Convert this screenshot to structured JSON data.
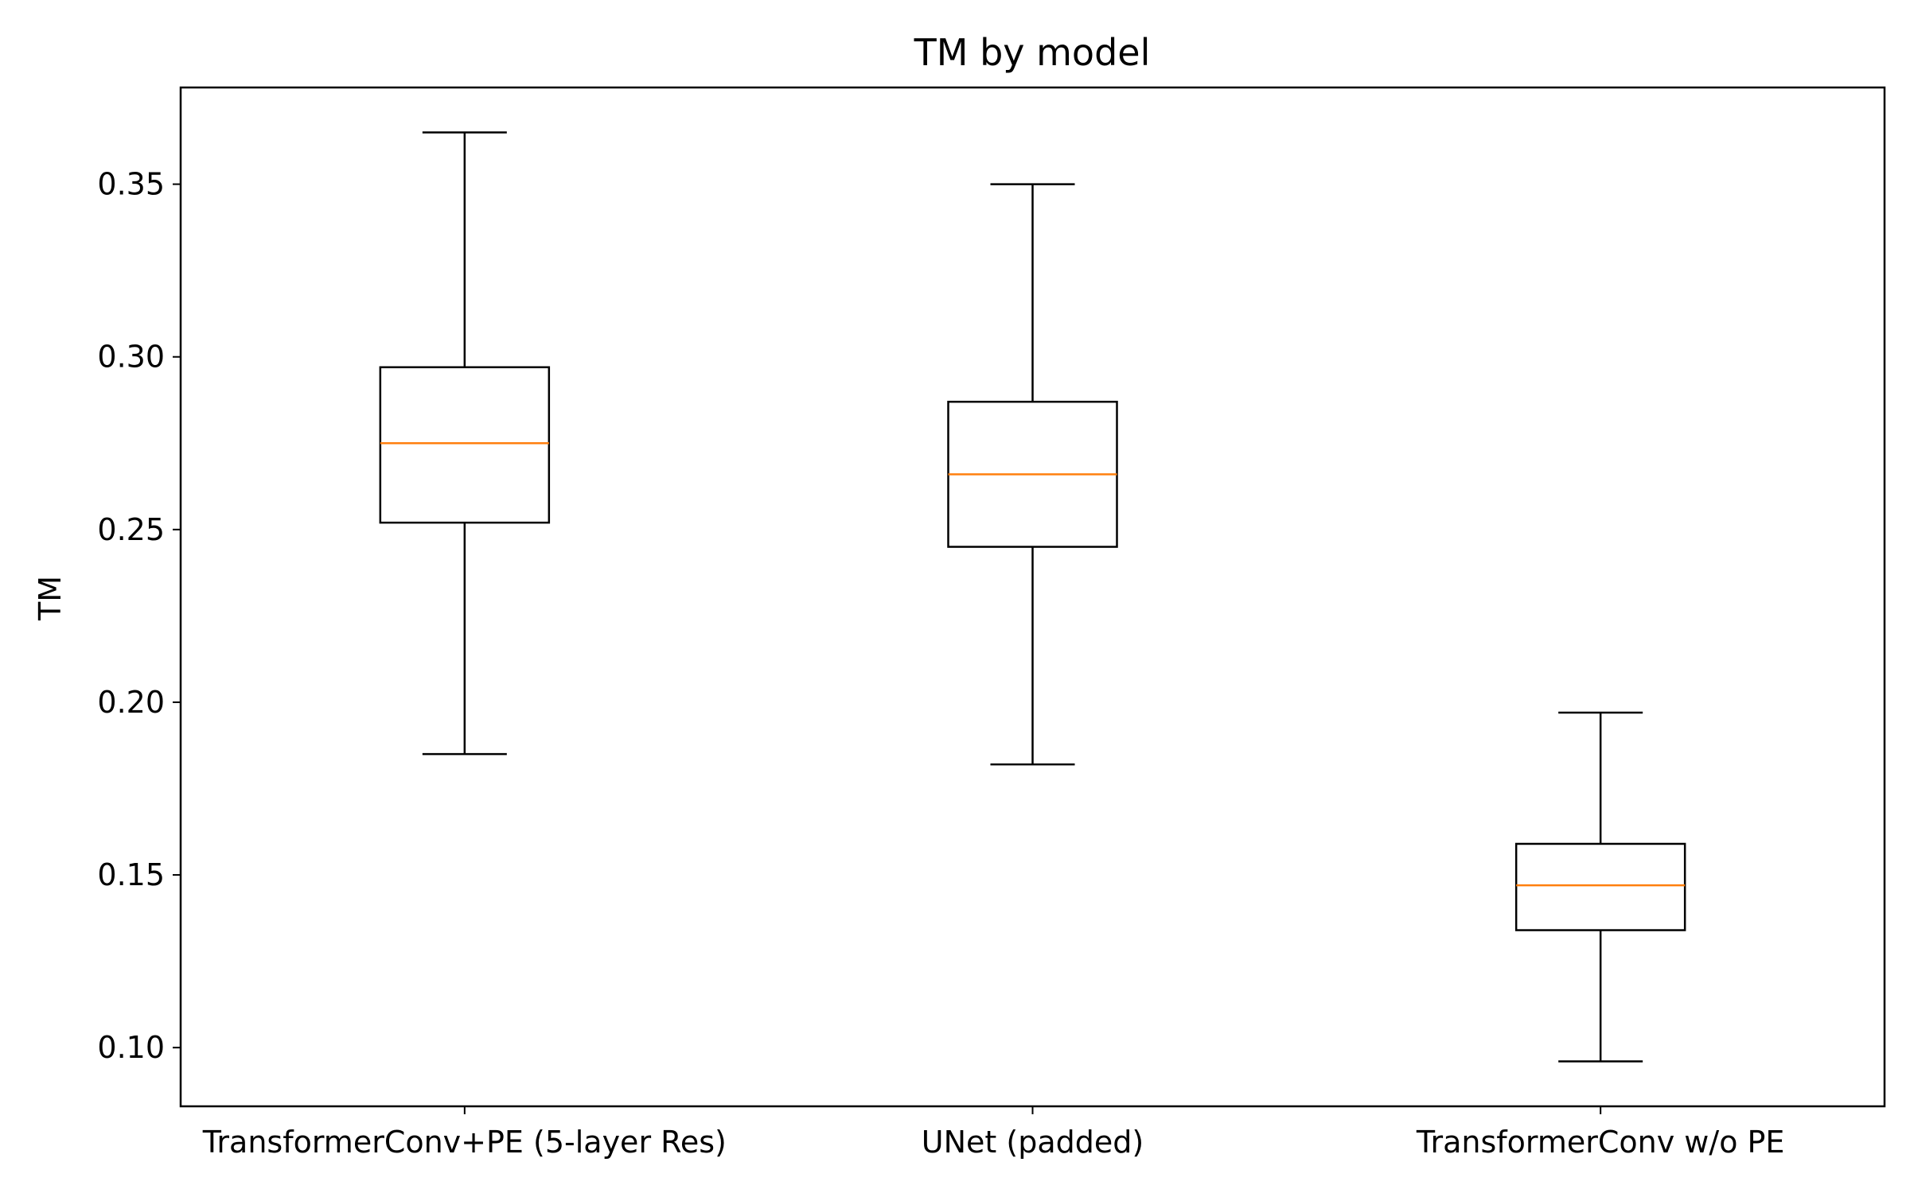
{
  "chart_data": {
    "type": "box",
    "title": "TM by model",
    "xlabel": "",
    "ylabel": "TM",
    "ylim": [
      0.083,
      0.378
    ],
    "y_ticks": [
      0.1,
      0.15,
      0.2,
      0.25,
      0.3,
      0.35
    ],
    "y_tick_labels": [
      "0.10",
      "0.15",
      "0.20",
      "0.25",
      "0.30",
      "0.35"
    ],
    "categories": [
      "TransformerConv+PE (5-layer Res)",
      "UNet (padded)",
      "TransformerConv w/o PE"
    ],
    "boxes": [
      {
        "category": "TransformerConv+PE (5-layer Res)",
        "whisker_low": 0.185,
        "q1": 0.252,
        "median": 0.275,
        "q3": 0.297,
        "whisker_high": 0.365
      },
      {
        "category": "UNet (padded)",
        "whisker_low": 0.182,
        "q1": 0.245,
        "median": 0.266,
        "q3": 0.287,
        "whisker_high": 0.35
      },
      {
        "category": "TransformerConv w/o PE",
        "whisker_low": 0.096,
        "q1": 0.134,
        "median": 0.147,
        "q3": 0.159,
        "whisker_high": 0.197
      }
    ],
    "grid": false,
    "legend": "none",
    "colors": {
      "box": "#000000",
      "median": "#ff7f0e"
    }
  }
}
